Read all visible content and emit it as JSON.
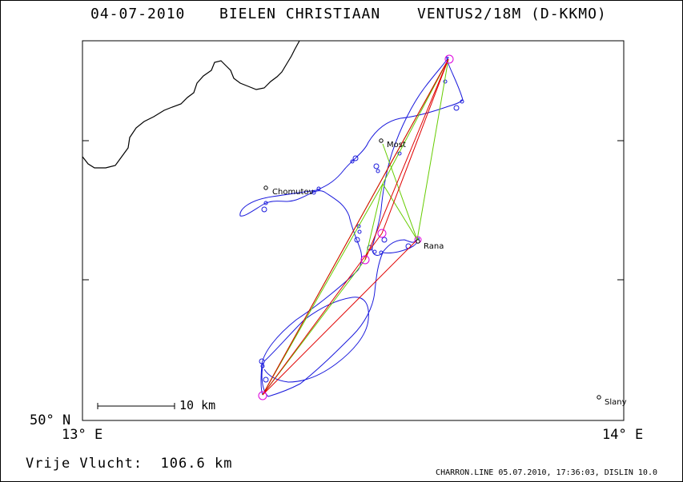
{
  "header": {
    "date": "04-07-2010",
    "pilot": "BIELEN CHRISTIAAN",
    "glider": "VENTUS2/18M (D-KKMO)"
  },
  "map": {
    "latitude_label": "50° N",
    "longitude_left": "13° E",
    "longitude_right": "14° E",
    "scale_label": "10 km",
    "places": [
      {
        "name": "Most"
      },
      {
        "name": "Chomutov"
      },
      {
        "name": "Rana"
      },
      {
        "name": "Slany"
      }
    ],
    "colors": {
      "track": "#1a1adc",
      "task": "#33cc00",
      "optimized": "#e00000",
      "turnpoint": "#dd00dd",
      "border": "#000000"
    }
  },
  "footer": {
    "distance_label": "Vrije Vlucht:",
    "distance_value": "106.6 km",
    "credits": "CHARRON.LINE 05.07.2010, 17:36:03, DISLIN 10.0"
  }
}
